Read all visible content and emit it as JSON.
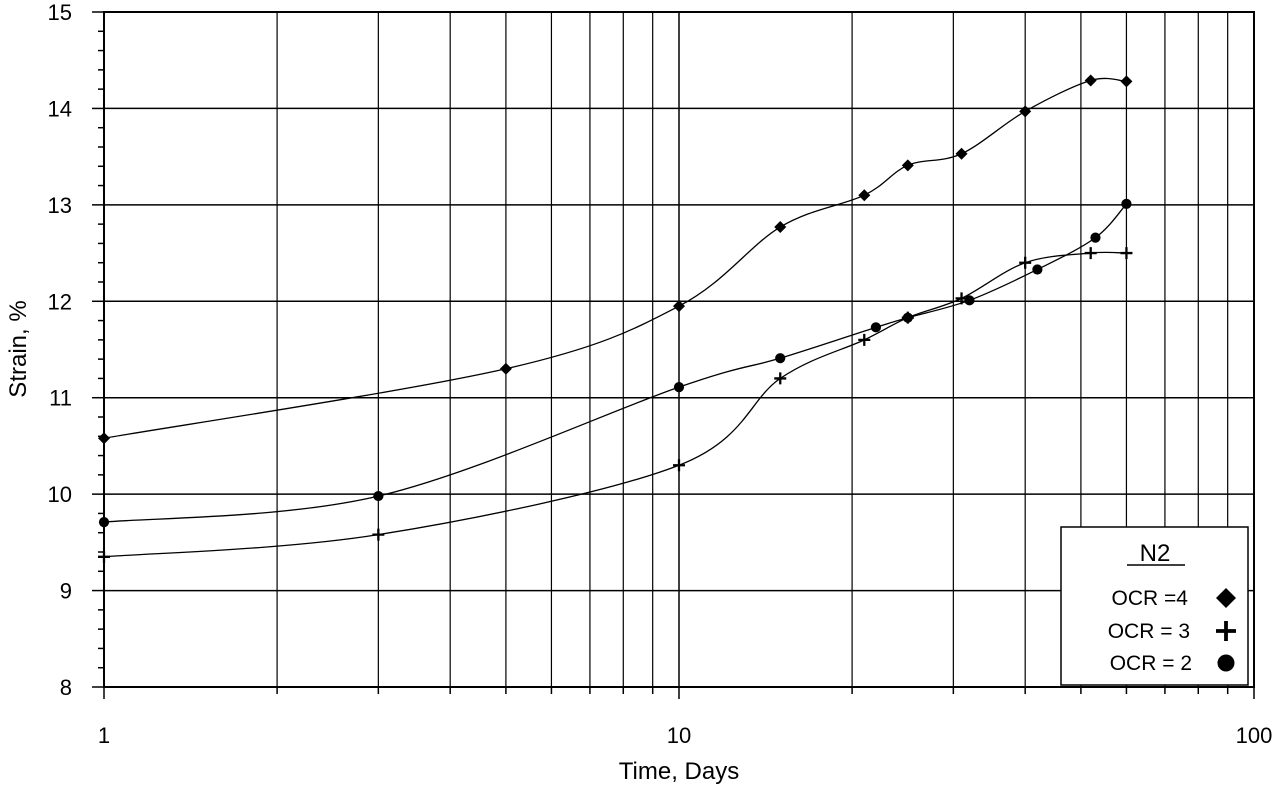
{
  "chart_data": {
    "type": "line",
    "xscale": "log",
    "xlim": [
      1,
      100
    ],
    "ylim": [
      8,
      15
    ],
    "grid": true,
    "xlabel": "Time, Days",
    "ylabel": "Strain, %",
    "xticks": [
      "1",
      "10",
      "100"
    ],
    "yticks": [
      "8",
      "9",
      "10",
      "11",
      "12",
      "13",
      "14",
      "15"
    ],
    "legend": {
      "title": "N2",
      "position": "bottom-right"
    },
    "series": [
      {
        "name": "OCR =4",
        "marker": "diamond",
        "points": [
          [
            1,
            10.58
          ],
          [
            5,
            11.3
          ],
          [
            10,
            11.95
          ],
          [
            15,
            12.77
          ],
          [
            21,
            13.1
          ],
          [
            25,
            13.41
          ],
          [
            31,
            13.53
          ],
          [
            40,
            13.97
          ],
          [
            52,
            14.29
          ],
          [
            60,
            14.28
          ]
        ]
      },
      {
        "name": "OCR = 3",
        "marker": "cross",
        "points": [
          [
            1,
            9.35
          ],
          [
            3,
            9.58
          ],
          [
            10,
            10.3
          ],
          [
            15,
            11.2
          ],
          [
            21,
            11.6
          ],
          [
            25,
            11.83
          ],
          [
            31,
            12.03
          ],
          [
            40,
            12.4
          ],
          [
            52,
            12.5
          ],
          [
            60,
            12.5
          ]
        ]
      },
      {
        "name": "OCR = 2",
        "marker": "circle",
        "points": [
          [
            1,
            9.71
          ],
          [
            3,
            9.98
          ],
          [
            10,
            11.11
          ],
          [
            15,
            11.41
          ],
          [
            22,
            11.73
          ],
          [
            25,
            11.83
          ],
          [
            32,
            12.01
          ],
          [
            42,
            12.33
          ],
          [
            53,
            12.66
          ],
          [
            60,
            13.01
          ]
        ]
      }
    ]
  }
}
